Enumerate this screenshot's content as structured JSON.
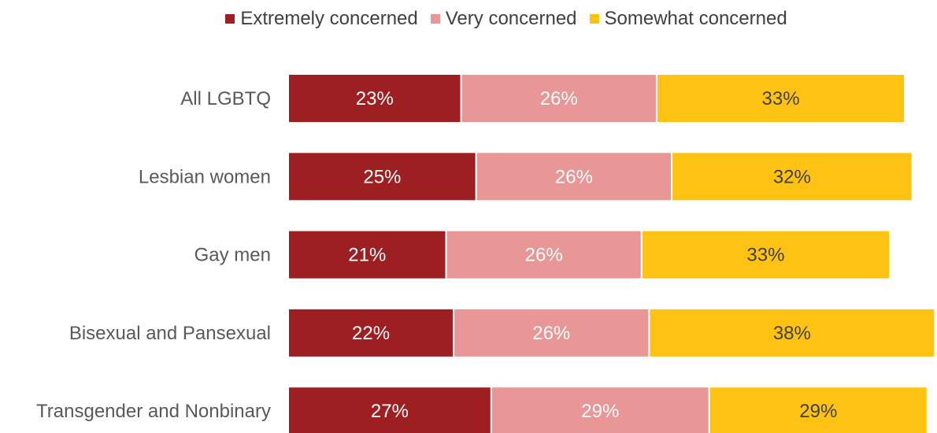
{
  "chart_data": {
    "type": "bar",
    "orientation": "horizontal",
    "stacked": true,
    "categories": [
      "All LGBTQ",
      "Lesbian women",
      "Gay men",
      "Bisexual and Pansexual",
      "Transgender and Nonbinary"
    ],
    "series": [
      {
        "name": "Extremely concerned",
        "color": "#9e1f22",
        "values": [
          23,
          25,
          21,
          22,
          27
        ],
        "labels": [
          "23%",
          "25%",
          "21%",
          "22%",
          "27%"
        ]
      },
      {
        "name": "Very concerned",
        "color": "#e99697",
        "values": [
          26,
          26,
          26,
          26,
          29
        ],
        "labels": [
          "26%",
          "26%",
          "26%",
          "26%",
          "29%"
        ]
      },
      {
        "name": "Somewhat concerned",
        "color": "#fec312",
        "values": [
          33,
          32,
          33,
          38,
          29
        ],
        "labels": [
          "33%",
          "32%",
          "33%",
          "38%",
          "29%"
        ]
      }
    ],
    "xlim": [
      0,
      85
    ],
    "grid": false,
    "legend_position": "top",
    "title": "",
    "xlabel": "",
    "ylabel": ""
  }
}
